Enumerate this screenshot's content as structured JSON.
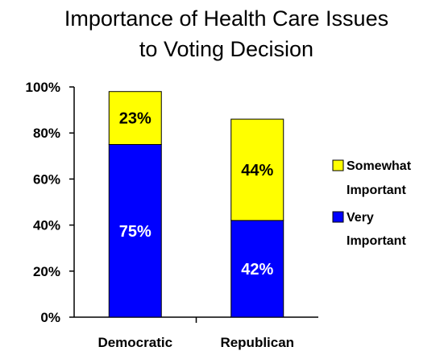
{
  "chart_data": {
    "type": "bar",
    "stacked": true,
    "title_lines": [
      "Importance of Health Care Issues",
      "to Voting Decision"
    ],
    "categories": [
      "Democratic",
      "Republican"
    ],
    "series": [
      {
        "name": "Very Important",
        "legend_lines": [
          "Very",
          "Important"
        ],
        "values": [
          75,
          42
        ],
        "labels": [
          "75%",
          "42%"
        ],
        "color": "#0000ff",
        "label_color": "#ffffff"
      },
      {
        "name": "Somewhat Important",
        "legend_lines": [
          "Somewhat",
          "Important"
        ],
        "values": [
          23,
          44
        ],
        "labels": [
          "23%",
          "44%"
        ],
        "color": "#ffff00",
        "label_color": "#000000"
      }
    ],
    "ylim": [
      0,
      100
    ],
    "yticks": [
      "0%",
      "20%",
      "40%",
      "60%",
      "80%",
      "100%"
    ],
    "grid": false,
    "legend_position": "right"
  }
}
